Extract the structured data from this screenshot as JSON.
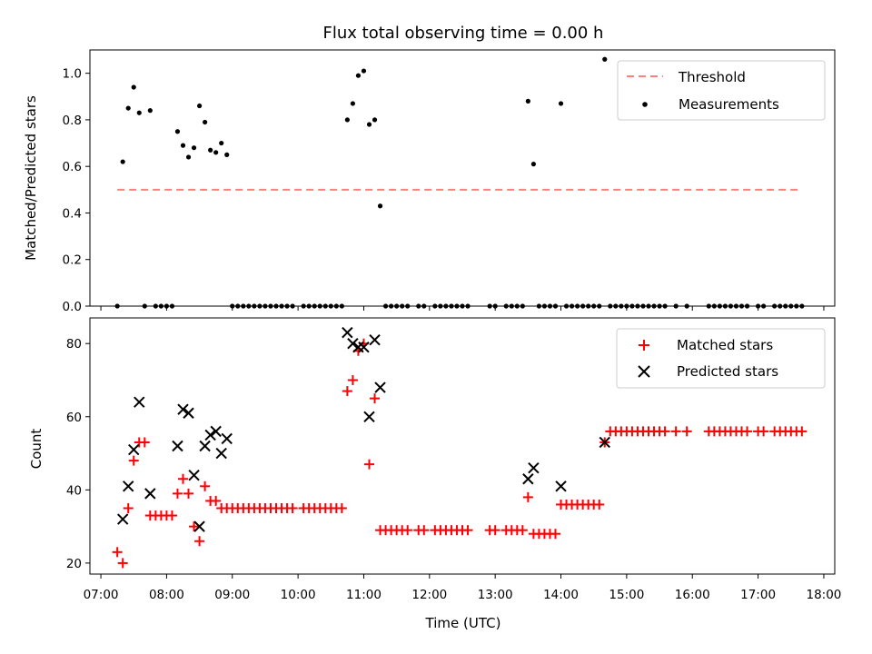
{
  "figure": {
    "title": "Flux total observing time = 0.00 h",
    "xlabel": "Time (UTC)",
    "x_ticks": [
      "07:00",
      "08:00",
      "09:00",
      "10:00",
      "11:00",
      "12:00",
      "13:00",
      "14:00",
      "15:00",
      "16:00",
      "17:00",
      "18:00"
    ]
  },
  "colors": {
    "threshold": "#ff7f7f",
    "measurement": "#000000",
    "matched": "#ff0000",
    "predicted": "#000000"
  },
  "chart_data": [
    {
      "type": "scatter",
      "title": "Flux total observing time = 0.00 h",
      "xlabel": "",
      "ylabel": "Matched/Predicted stars",
      "xlim": [
        "06:50",
        "18:10"
      ],
      "ylim": [
        0,
        1.1
      ],
      "yticks": [
        "0.0",
        "0.2",
        "0.4",
        "0.6",
        "0.8",
        "1.0"
      ],
      "legend_position": "top-right",
      "threshold": {
        "name": "Threshold",
        "value": 0.5,
        "x_start": "07:15",
        "x_end": "17:40",
        "style": "dashed"
      },
      "series": [
        {
          "name": "Measurements",
          "points": [
            [
              "07:15",
              0.0
            ],
            [
              "07:20",
              0.62
            ],
            [
              "07:25",
              0.85
            ],
            [
              "07:30",
              0.94
            ],
            [
              "07:35",
              0.83
            ],
            [
              "07:40",
              0.0
            ],
            [
              "07:45",
              0.84
            ],
            [
              "07:50",
              0.0
            ],
            [
              "07:55",
              0.0
            ],
            [
              "08:00",
              0.0
            ],
            [
              "08:05",
              0.0
            ],
            [
              "08:10",
              0.75
            ],
            [
              "08:15",
              0.69
            ],
            [
              "08:20",
              0.64
            ],
            [
              "08:25",
              0.68
            ],
            [
              "08:30",
              0.86
            ],
            [
              "08:35",
              0.79
            ],
            [
              "08:40",
              0.67
            ],
            [
              "08:45",
              0.66
            ],
            [
              "08:50",
              0.7
            ],
            [
              "08:55",
              0.65
            ],
            [
              "09:00",
              0.0
            ],
            [
              "09:05",
              0.0
            ],
            [
              "09:10",
              0.0
            ],
            [
              "09:15",
              0.0
            ],
            [
              "09:20",
              0.0
            ],
            [
              "09:25",
              0.0
            ],
            [
              "09:30",
              0.0
            ],
            [
              "09:35",
              0.0
            ],
            [
              "09:40",
              0.0
            ],
            [
              "09:45",
              0.0
            ],
            [
              "09:50",
              0.0
            ],
            [
              "09:55",
              0.0
            ],
            [
              "10:05",
              0.0
            ],
            [
              "10:10",
              0.0
            ],
            [
              "10:15",
              0.0
            ],
            [
              "10:20",
              0.0
            ],
            [
              "10:25",
              0.0
            ],
            [
              "10:30",
              0.0
            ],
            [
              "10:35",
              0.0
            ],
            [
              "10:40",
              0.0
            ],
            [
              "10:45",
              0.8
            ],
            [
              "10:50",
              0.87
            ],
            [
              "10:55",
              0.99
            ],
            [
              "11:00",
              1.01
            ],
            [
              "11:05",
              0.78
            ],
            [
              "11:10",
              0.8
            ],
            [
              "11:15",
              0.43
            ],
            [
              "11:20",
              0.0
            ],
            [
              "11:25",
              0.0
            ],
            [
              "11:30",
              0.0
            ],
            [
              "11:35",
              0.0
            ],
            [
              "11:40",
              0.0
            ],
            [
              "11:50",
              0.0
            ],
            [
              "11:55",
              0.0
            ],
            [
              "12:05",
              0.0
            ],
            [
              "12:10",
              0.0
            ],
            [
              "12:15",
              0.0
            ],
            [
              "12:20",
              0.0
            ],
            [
              "12:25",
              0.0
            ],
            [
              "12:30",
              0.0
            ],
            [
              "12:35",
              0.0
            ],
            [
              "12:55",
              0.0
            ],
            [
              "13:00",
              0.0
            ],
            [
              "13:10",
              0.0
            ],
            [
              "13:15",
              0.0
            ],
            [
              "13:20",
              0.0
            ],
            [
              "13:25",
              0.0
            ],
            [
              "13:30",
              0.88
            ],
            [
              "13:35",
              0.61
            ],
            [
              "13:40",
              0.0
            ],
            [
              "13:45",
              0.0
            ],
            [
              "13:50",
              0.0
            ],
            [
              "13:55",
              0.0
            ],
            [
              "14:00",
              0.87
            ],
            [
              "14:05",
              0.0
            ],
            [
              "14:10",
              0.0
            ],
            [
              "14:15",
              0.0
            ],
            [
              "14:20",
              0.0
            ],
            [
              "14:25",
              0.0
            ],
            [
              "14:30",
              0.0
            ],
            [
              "14:35",
              0.0
            ],
            [
              "14:40",
              1.06
            ],
            [
              "14:45",
              0.0
            ],
            [
              "14:50",
              0.0
            ],
            [
              "14:55",
              0.0
            ],
            [
              "15:00",
              0.0
            ],
            [
              "15:05",
              0.0
            ],
            [
              "15:10",
              0.0
            ],
            [
              "15:15",
              0.0
            ],
            [
              "15:20",
              0.0
            ],
            [
              "15:25",
              0.0
            ],
            [
              "15:30",
              0.0
            ],
            [
              "15:35",
              0.0
            ],
            [
              "15:45",
              0.0
            ],
            [
              "15:55",
              0.0
            ],
            [
              "16:15",
              0.0
            ],
            [
              "16:20",
              0.0
            ],
            [
              "16:25",
              0.0
            ],
            [
              "16:30",
              0.0
            ],
            [
              "16:35",
              0.0
            ],
            [
              "16:40",
              0.0
            ],
            [
              "16:45",
              0.0
            ],
            [
              "16:50",
              0.0
            ],
            [
              "17:00",
              0.0
            ],
            [
              "17:05",
              0.0
            ],
            [
              "17:15",
              0.0
            ],
            [
              "17:20",
              0.0
            ],
            [
              "17:25",
              0.0
            ],
            [
              "17:30",
              0.0
            ],
            [
              "17:35",
              0.0
            ],
            [
              "17:40",
              0.0
            ]
          ]
        }
      ]
    },
    {
      "type": "scatter",
      "title": "",
      "xlabel": "Time (UTC)",
      "ylabel": "Count",
      "xlim": [
        "06:50",
        "18:10"
      ],
      "ylim": [
        17,
        87
      ],
      "yticks": [
        "20",
        "40",
        "60",
        "80"
      ],
      "legend_position": "top-right",
      "series": [
        {
          "name": "Matched stars",
          "marker": "plus",
          "points": [
            [
              "07:15",
              23
            ],
            [
              "07:20",
              20
            ],
            [
              "07:25",
              35
            ],
            [
              "07:30",
              48
            ],
            [
              "07:35",
              53
            ],
            [
              "07:40",
              53
            ],
            [
              "07:45",
              33
            ],
            [
              "07:50",
              33
            ],
            [
              "07:55",
              33
            ],
            [
              "08:00",
              33
            ],
            [
              "08:05",
              33
            ],
            [
              "08:10",
              39
            ],
            [
              "08:15",
              43
            ],
            [
              "08:20",
              39
            ],
            [
              "08:25",
              30
            ],
            [
              "08:30",
              26
            ],
            [
              "08:35",
              41
            ],
            [
              "08:40",
              37
            ],
            [
              "08:45",
              37
            ],
            [
              "08:50",
              35
            ],
            [
              "08:55",
              35
            ],
            [
              "09:00",
              35
            ],
            [
              "09:05",
              35
            ],
            [
              "09:10",
              35
            ],
            [
              "09:15",
              35
            ],
            [
              "09:20",
              35
            ],
            [
              "09:25",
              35
            ],
            [
              "09:30",
              35
            ],
            [
              "09:35",
              35
            ],
            [
              "09:40",
              35
            ],
            [
              "09:45",
              35
            ],
            [
              "09:50",
              35
            ],
            [
              "09:55",
              35
            ],
            [
              "10:05",
              35
            ],
            [
              "10:10",
              35
            ],
            [
              "10:15",
              35
            ],
            [
              "10:20",
              35
            ],
            [
              "10:25",
              35
            ],
            [
              "10:30",
              35
            ],
            [
              "10:35",
              35
            ],
            [
              "10:40",
              35
            ],
            [
              "10:45",
              67
            ],
            [
              "10:50",
              70
            ],
            [
              "10:55",
              78
            ],
            [
              "11:00",
              80
            ],
            [
              "11:05",
              47
            ],
            [
              "11:10",
              65
            ],
            [
              "11:15",
              29
            ],
            [
              "11:20",
              29
            ],
            [
              "11:25",
              29
            ],
            [
              "11:30",
              29
            ],
            [
              "11:35",
              29
            ],
            [
              "11:40",
              29
            ],
            [
              "11:50",
              29
            ],
            [
              "11:55",
              29
            ],
            [
              "12:05",
              29
            ],
            [
              "12:10",
              29
            ],
            [
              "12:15",
              29
            ],
            [
              "12:20",
              29
            ],
            [
              "12:25",
              29
            ],
            [
              "12:30",
              29
            ],
            [
              "12:35",
              29
            ],
            [
              "12:55",
              29
            ],
            [
              "13:00",
              29
            ],
            [
              "13:10",
              29
            ],
            [
              "13:15",
              29
            ],
            [
              "13:20",
              29
            ],
            [
              "13:25",
              29
            ],
            [
              "13:30",
              38
            ],
            [
              "13:35",
              28
            ],
            [
              "13:40",
              28
            ],
            [
              "13:45",
              28
            ],
            [
              "13:50",
              28
            ],
            [
              "13:55",
              28
            ],
            [
              "14:00",
              36
            ],
            [
              "14:05",
              36
            ],
            [
              "14:10",
              36
            ],
            [
              "14:15",
              36
            ],
            [
              "14:20",
              36
            ],
            [
              "14:25",
              36
            ],
            [
              "14:30",
              36
            ],
            [
              "14:35",
              36
            ],
            [
              "14:40",
              53
            ],
            [
              "14:45",
              56
            ],
            [
              "14:50",
              56
            ],
            [
              "14:55",
              56
            ],
            [
              "15:00",
              56
            ],
            [
              "15:05",
              56
            ],
            [
              "15:10",
              56
            ],
            [
              "15:15",
              56
            ],
            [
              "15:20",
              56
            ],
            [
              "15:25",
              56
            ],
            [
              "15:30",
              56
            ],
            [
              "15:35",
              56
            ],
            [
              "15:45",
              56
            ],
            [
              "15:55",
              56
            ],
            [
              "16:15",
              56
            ],
            [
              "16:20",
              56
            ],
            [
              "16:25",
              56
            ],
            [
              "16:30",
              56
            ],
            [
              "16:35",
              56
            ],
            [
              "16:40",
              56
            ],
            [
              "16:45",
              56
            ],
            [
              "16:50",
              56
            ],
            [
              "17:00",
              56
            ],
            [
              "17:05",
              56
            ],
            [
              "17:15",
              56
            ],
            [
              "17:20",
              56
            ],
            [
              "17:25",
              56
            ],
            [
              "17:30",
              56
            ],
            [
              "17:35",
              56
            ],
            [
              "17:40",
              56
            ]
          ]
        },
        {
          "name": "Predicted stars",
          "marker": "x",
          "points": [
            [
              "07:20",
              32
            ],
            [
              "07:25",
              41
            ],
            [
              "07:30",
              51
            ],
            [
              "07:35",
              64
            ],
            [
              "07:45",
              39
            ],
            [
              "08:10",
              52
            ],
            [
              "08:15",
              62
            ],
            [
              "08:20",
              61
            ],
            [
              "08:25",
              44
            ],
            [
              "08:30",
              30
            ],
            [
              "08:35",
              52
            ],
            [
              "08:40",
              55
            ],
            [
              "08:45",
              56
            ],
            [
              "08:50",
              50
            ],
            [
              "08:55",
              54
            ],
            [
              "10:45",
              83
            ],
            [
              "10:50",
              80
            ],
            [
              "10:55",
              79
            ],
            [
              "11:00",
              79
            ],
            [
              "11:05",
              60
            ],
            [
              "11:10",
              81
            ],
            [
              "11:15",
              68
            ],
            [
              "13:30",
              43
            ],
            [
              "13:35",
              46
            ],
            [
              "14:00",
              41
            ],
            [
              "14:40",
              53
            ]
          ]
        }
      ]
    }
  ]
}
